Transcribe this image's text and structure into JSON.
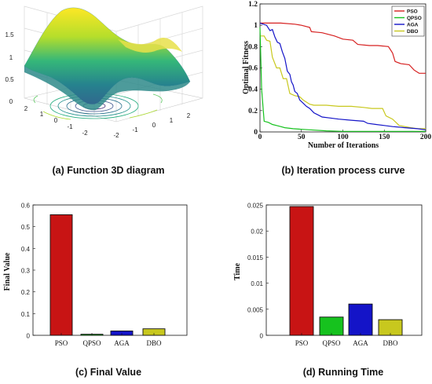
{
  "chart_data": [
    {
      "id": "a",
      "type": "surface",
      "caption": "(a) Function 3D diagram",
      "z_ticks": [
        "0",
        "0.5",
        "1",
        "1.5"
      ],
      "x_ticks": [
        "-2",
        "-1",
        "0",
        "1",
        "2"
      ],
      "y_ticks": [
        "-2",
        "-1",
        "0",
        "1",
        "2"
      ],
      "colormap": [
        "#440154",
        "#3b528b",
        "#21918c",
        "#5ec962",
        "#fde725"
      ]
    },
    {
      "id": "b",
      "type": "line",
      "caption": "(b) Iteration process curve",
      "xlabel": "Number of Iterations",
      "ylabel": "Optimal Fitness",
      "xlim": [
        0,
        200
      ],
      "ylim": [
        0,
        1.2
      ],
      "x_ticks": [
        "0",
        "50",
        "100",
        "150",
        "200"
      ],
      "y_ticks": [
        "0",
        "0.2",
        "0.4",
        "0.6",
        "0.8",
        "1",
        "1.2"
      ],
      "legend_position": "top-right",
      "series": [
        {
          "name": "PSO",
          "color": "#d62020",
          "points": [
            [
              0,
              1.02
            ],
            [
              25,
              1.02
            ],
            [
              42,
              1.01
            ],
            [
              50,
              1.0
            ],
            [
              60,
              0.98
            ],
            [
              62,
              0.94
            ],
            [
              75,
              0.93
            ],
            [
              90,
              0.9
            ],
            [
              100,
              0.87
            ],
            [
              112,
              0.86
            ],
            [
              118,
              0.82
            ],
            [
              132,
              0.81
            ],
            [
              142,
              0.81
            ],
            [
              155,
              0.8
            ],
            [
              160,
              0.74
            ],
            [
              163,
              0.66
            ],
            [
              170,
              0.64
            ],
            [
              180,
              0.63
            ],
            [
              186,
              0.58
            ],
            [
              192,
              0.55
            ],
            [
              200,
              0.55
            ]
          ]
        },
        {
          "name": "QPSO",
          "color": "#16c21e",
          "points": [
            [
              0,
              0.98
            ],
            [
              2,
              0.4
            ],
            [
              5,
              0.1
            ],
            [
              10,
              0.09
            ],
            [
              15,
              0.07
            ],
            [
              20,
              0.06
            ],
            [
              25,
              0.05
            ],
            [
              30,
              0.04
            ],
            [
              40,
              0.03
            ],
            [
              60,
              0.02
            ],
            [
              80,
              0.01
            ],
            [
              100,
              0.005
            ],
            [
              200,
              0.005
            ]
          ]
        },
        {
          "name": "AGA",
          "color": "#1414c8",
          "points": [
            [
              0,
              1.02
            ],
            [
              8,
              1.0
            ],
            [
              12,
              0.95
            ],
            [
              15,
              0.96
            ],
            [
              18,
              0.89
            ],
            [
              21,
              0.84
            ],
            [
              24,
              0.83
            ],
            [
              27,
              0.75
            ],
            [
              30,
              0.69
            ],
            [
              33,
              0.57
            ],
            [
              36,
              0.54
            ],
            [
              38,
              0.47
            ],
            [
              40,
              0.44
            ],
            [
              42,
              0.38
            ],
            [
              45,
              0.36
            ],
            [
              48,
              0.3
            ],
            [
              52,
              0.27
            ],
            [
              56,
              0.24
            ],
            [
              60,
              0.22
            ],
            [
              65,
              0.18
            ],
            [
              70,
              0.16
            ],
            [
              75,
              0.14
            ],
            [
              85,
              0.13
            ],
            [
              95,
              0.12
            ],
            [
              110,
              0.11
            ],
            [
              125,
              0.1
            ],
            [
              130,
              0.08
            ],
            [
              140,
              0.07
            ],
            [
              150,
              0.06
            ],
            [
              160,
              0.05
            ],
            [
              175,
              0.04
            ],
            [
              190,
              0.03
            ],
            [
              200,
              0.02
            ]
          ]
        },
        {
          "name": "DBO",
          "color": "#c8c81e",
          "points": [
            [
              0,
              0.9
            ],
            [
              5,
              0.9
            ],
            [
              8,
              0.86
            ],
            [
              12,
              0.85
            ],
            [
              15,
              0.7
            ],
            [
              20,
              0.6
            ],
            [
              24,
              0.6
            ],
            [
              28,
              0.5
            ],
            [
              32,
              0.5
            ],
            [
              36,
              0.36
            ],
            [
              42,
              0.34
            ],
            [
              48,
              0.33
            ],
            [
              52,
              0.3
            ],
            [
              56,
              0.28
            ],
            [
              60,
              0.26
            ],
            [
              65,
              0.25
            ],
            [
              80,
              0.25
            ],
            [
              95,
              0.24
            ],
            [
              110,
              0.24
            ],
            [
              125,
              0.23
            ],
            [
              135,
              0.22
            ],
            [
              148,
              0.22
            ],
            [
              152,
              0.15
            ],
            [
              160,
              0.12
            ],
            [
              168,
              0.06
            ],
            [
              175,
              0.05
            ],
            [
              182,
              0.04
            ],
            [
              190,
              0.03
            ],
            [
              200,
              0.03
            ]
          ]
        }
      ]
    },
    {
      "id": "c",
      "type": "bar",
      "caption": "(c) Final Value",
      "ylabel": "Final Value",
      "ylim": [
        0,
        0.6
      ],
      "y_ticks": [
        "0",
        "0.1",
        "0.2",
        "0.3",
        "0.4",
        "0.5",
        "0.6"
      ],
      "categories": [
        "PSO",
        "QPSO",
        "AGA",
        "DBO"
      ],
      "values": [
        0.555,
        0.005,
        0.02,
        0.03
      ],
      "colors": [
        "#c81414",
        "#16c21e",
        "#1414c8",
        "#c8c81e"
      ]
    },
    {
      "id": "d",
      "type": "bar",
      "caption": "(d) Running Time",
      "ylabel": "Time",
      "ylim": [
        0,
        0.025
      ],
      "y_ticks": [
        "0",
        "0.005",
        "0.01",
        "0.015",
        "0.02",
        "0.025"
      ],
      "categories": [
        "PSO",
        "QPSO",
        "AGA",
        "DBO"
      ],
      "values": [
        0.0247,
        0.0035,
        0.006,
        0.003
      ],
      "colors": [
        "#c81414",
        "#16c21e",
        "#1414c8",
        "#c8c81e"
      ]
    }
  ]
}
